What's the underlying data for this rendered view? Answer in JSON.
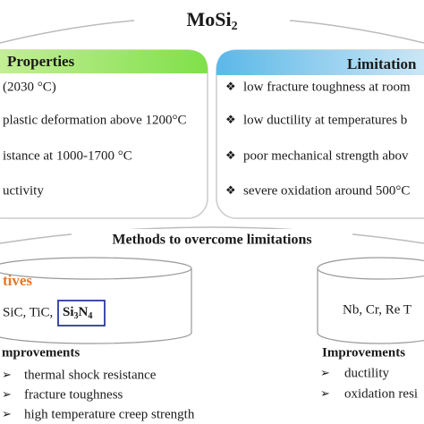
{
  "title": {
    "base": "MoSi",
    "sub": "2"
  },
  "properties": {
    "heading": "Properties",
    "items": [
      "(2030 °C)",
      "plastic deformation  above 1200°C",
      "istance at 1000-1700 °C",
      "uctivity"
    ]
  },
  "limitations": {
    "heading": "Limitation",
    "items": [
      "low fracture toughness at room",
      "low ductility at temperatures b",
      "poor mechanical strength abov",
      "severe oxidation around 500°C"
    ]
  },
  "methods": {
    "heading": "Methods to overcome limitations"
  },
  "additives": {
    "heading": "tives",
    "items": "SiC, TiC,",
    "boxed": {
      "parts": [
        "Si",
        "3",
        "N",
        "4"
      ]
    },
    "improvements": {
      "heading": "mprovements",
      "items": [
        "thermal shock resistance",
        "fracture toughness",
        "high temperature creep strength"
      ]
    }
  },
  "alloying": {
    "items": "Nb, Cr, Re  T",
    "improvements": {
      "heading": "Improvements",
      "items": [
        "ductility",
        "oxidation resi"
      ]
    }
  }
}
